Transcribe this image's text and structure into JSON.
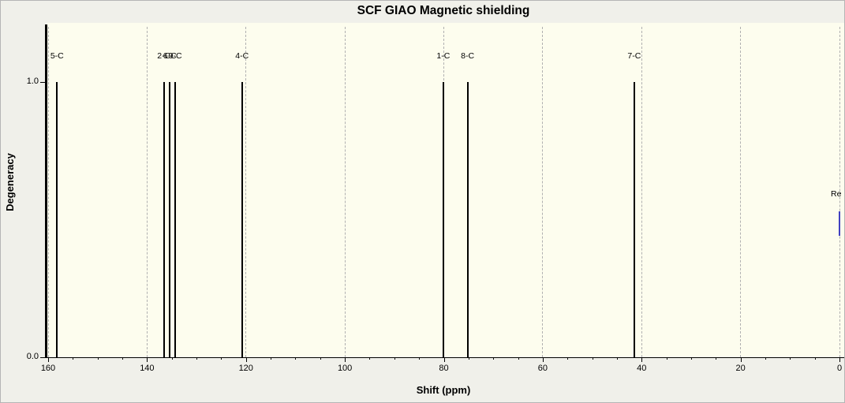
{
  "chart_data": {
    "type": "line",
    "subtype": "stick-spectrum",
    "title": "SCF GIAO Magnetic shielding",
    "xlabel": "Shift (ppm)",
    "ylabel": "Degeneracy",
    "xlim": [
      160,
      0
    ],
    "ylim": [
      0,
      1
    ],
    "x_ticks": [
      160,
      140,
      120,
      100,
      80,
      60,
      40,
      20,
      0
    ],
    "x_minor_step": 5,
    "y_ticks": [
      {
        "value": 0,
        "label": "0.0"
      },
      {
        "value": 1,
        "label": "1.0"
      }
    ],
    "grid": "vertical-dashed",
    "legend": "none",
    "colors": {
      "peak": "#000000",
      "reference": "#4040c0",
      "grid": "#b0b0b0",
      "plot_background": "#fdfdee",
      "margin_background": "#f0f0ea"
    },
    "peaks": [
      {
        "label": "5-C",
        "shift": 158.2,
        "degeneracy": 1.0
      },
      {
        "label": "2-C",
        "shift": 136.6,
        "degeneracy": 1.0
      },
      {
        "label": "6-C",
        "shift": 135.4,
        "degeneracy": 1.0
      },
      {
        "label": "9-C",
        "shift": 134.3,
        "degeneracy": 1.0
      },
      {
        "label": "4-C",
        "shift": 120.8,
        "degeneracy": 1.0
      },
      {
        "label": "1-C",
        "shift": 80.1,
        "degeneracy": 1.0
      },
      {
        "label": "8-C",
        "shift": 75.2,
        "degeneracy": 1.0
      },
      {
        "label": "7-C",
        "shift": 41.5,
        "degeneracy": 1.0
      }
    ],
    "reference": {
      "label": "Re",
      "shift": 0.0,
      "segment": [
        0.44,
        0.53
      ]
    }
  }
}
